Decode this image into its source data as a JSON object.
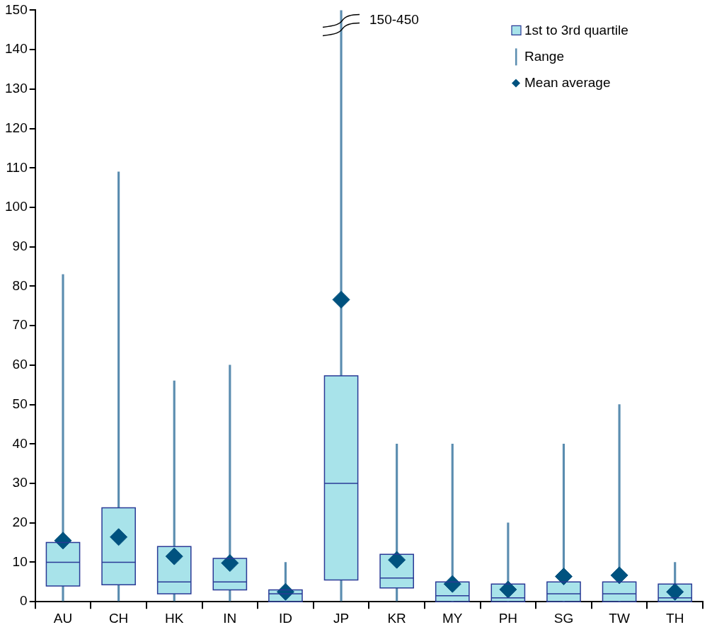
{
  "chart_data": {
    "type": "box",
    "categories": [
      "AU",
      "CH",
      "HK",
      "IN",
      "ID",
      "JP",
      "KR",
      "MY",
      "PH",
      "SG",
      "TW",
      "TH"
    ],
    "series": [
      {
        "name": "1st to 3rd quartile",
        "type": "box",
        "color": "#a8e3ea",
        "boxes": [
          {
            "q1": 4,
            "median": 10,
            "q3": 15
          },
          {
            "q1": 4.3,
            "median": 10,
            "q3": 23.8
          },
          {
            "q1": 2,
            "median": 5,
            "q3": 14
          },
          {
            "q1": 3,
            "median": 5,
            "q3": 11
          },
          {
            "q1": 0,
            "median": 2,
            "q3": 3
          },
          {
            "q1": 5.5,
            "median": 30,
            "q3": 57.3
          },
          {
            "q1": 3.5,
            "median": 6,
            "q3": 12
          },
          {
            "q1": 0,
            "median": 1.5,
            "q3": 5
          },
          {
            "q1": 0,
            "median": 1,
            "q3": 4.5
          },
          {
            "q1": 0,
            "median": 2,
            "q3": 5
          },
          {
            "q1": 0,
            "median": 2,
            "q3": 5
          },
          {
            "q1": 0,
            "median": 1,
            "q3": 4.5
          }
        ]
      },
      {
        "name": "Range",
        "type": "bar",
        "color": "#5b8db0",
        "base": [
          0,
          0,
          0,
          0,
          0,
          0,
          0,
          0,
          0,
          0,
          0,
          0
        ],
        "values": [
          83,
          109,
          56,
          60,
          10,
          150,
          40,
          40,
          20,
          40,
          50,
          10
        ]
      },
      {
        "name": "Mean average",
        "type": "scatter",
        "color": "#00527f",
        "marker": "diamond",
        "x": [
          "AU",
          "CH",
          "HK",
          "IN",
          "ID",
          "JP",
          "KR",
          "MY",
          "PH",
          "SG",
          "TW",
          "TH"
        ],
        "values": [
          15.5,
          16.4,
          11.5,
          9.8,
          2.5,
          76.6,
          10.6,
          4.5,
          3.1,
          6.4,
          6.7,
          2.5
        ]
      }
    ],
    "ylim": [
      0,
      150
    ],
    "yticks": [
      0,
      10,
      20,
      30,
      40,
      50,
      60,
      70,
      80,
      90,
      100,
      110,
      120,
      130,
      140,
      150
    ],
    "annotations": [
      {
        "text": "150-450",
        "x": "JP",
        "y": 150
      }
    ],
    "legend": "top right",
    "grid": false
  }
}
